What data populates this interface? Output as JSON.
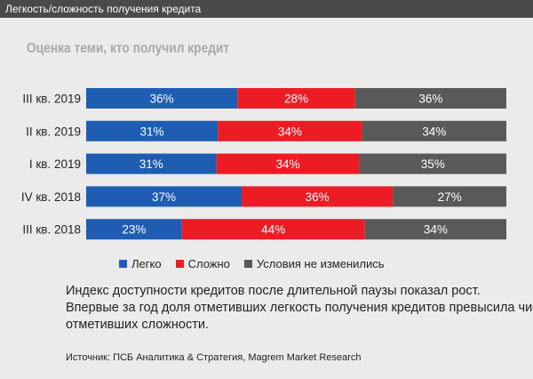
{
  "header": {
    "title": "Легкость/сложность получения кредита"
  },
  "chart_data": {
    "type": "bar",
    "orientation": "horizontal",
    "stacked": true,
    "title": "Оценка теми, кто получил кредит",
    "categories": [
      "III кв. 2019",
      "II кв. 2019",
      "I кв. 2019",
      "IV кв. 2018",
      "III кв. 2018"
    ],
    "series": [
      {
        "name": "Легко",
        "color": "#1f5db2",
        "values": [
          36,
          31,
          31,
          37,
          23
        ],
        "labels": [
          "36%",
          "31%",
          "31%",
          "37%",
          "23%"
        ]
      },
      {
        "name": "Сложно",
        "color": "#ed1c24",
        "values": [
          28,
          34,
          34,
          36,
          44
        ],
        "labels": [
          "28%",
          "34%",
          "34%",
          "36%",
          "44%"
        ]
      },
      {
        "name": "Условия не изменились",
        "color": "#595959",
        "values": [
          36,
          34,
          35,
          27,
          34
        ],
        "labels": [
          "36%",
          "34%",
          "35%",
          "27%",
          "34%"
        ]
      }
    ],
    "xlim": [
      0,
      100
    ],
    "grid": false,
    "legend_position": "bottom"
  },
  "note": {
    "lines": [
      "Индекс доступности кредитов после длительной паузы показал рост.",
      "Впервые за год доля отметивших легкость получения кредитов превысила число",
      "отметивших сложности."
    ]
  },
  "source": "Источник: ПСБ Аналитика & Стратегия, Magrem Market Research"
}
